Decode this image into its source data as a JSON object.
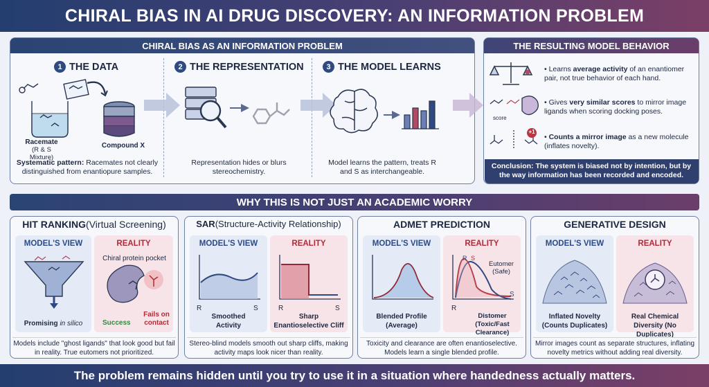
{
  "title": "CHIRAL BIAS IN AI DRUG DISCOVERY: AN INFORMATION PROBLEM",
  "top_left": {
    "header": "CHIRAL BIAS AS AN INFORMATION PROBLEM",
    "steps": [
      {
        "num": "1",
        "label": "THE DATA"
      },
      {
        "num": "2",
        "label": "THE REPRESENTATION"
      },
      {
        "num": "3",
        "label": "THE MODEL LEARNS"
      }
    ],
    "racemate_label": "Racemate",
    "racemate_sub": "(R & S Mixture)",
    "compound_label": "Compound X",
    "data_note_bold": "Systematic pattern:",
    "data_note": " Racemates not clearly distinguished from enantiopure samples.",
    "rep_note": "Representation hides or blurs stereochemistry.",
    "model_note": "Model learns the pattern, treats R and S as interchangeable."
  },
  "top_right": {
    "header": "THE RESULTING MODEL BEHAVIOR",
    "items": [
      {
        "pre": "Learns ",
        "bold": "average activity",
        "post": " of an enantiomer pair, not true behavior of each hand."
      },
      {
        "pre": "Gives ",
        "bold": "very similar scores",
        "post": " to mirror image ligands when scoring docking poses."
      },
      {
        "pre": "",
        "bold": "Counts a mirror image",
        "post": " as a new molecule (inflates novelty)."
      }
    ],
    "score_label": "score",
    "badge": "+1",
    "conclusion": "Conclusion: The system is biased not by intention, but by the way information has been recorded and encoded."
  },
  "section_title": "WHY THIS IS NOT JUST AN ACADEMIC WORRY",
  "models_view": "MODEL'S VIEW",
  "reality": "REALITY",
  "cards": {
    "hit": {
      "title_bold": "HIT RANKING",
      "title_rest": " (Virtual Screening)",
      "mv_caption_pre": "Promising ",
      "mv_caption_it": "in silico",
      "pocket_label": "Chiral protein pocket",
      "success": "Success",
      "fails": "Fails on contact",
      "note": "Models include \"ghost ligands\" that look good but fail in reality. True eutomers not prioritized."
    },
    "sar": {
      "title_bold": "SAR",
      "title_rest": " (Structure-Activity Relationship)",
      "mv_caption": "Smoothed Activity",
      "re_caption": "Sharp Enantioselective Cliff",
      "axis_r": "R",
      "axis_s": "S",
      "note": "Stereo-blind models smooth out sharp cliffs, making activity maps look nicer than reality."
    },
    "admet": {
      "title_bold": "ADMET PREDICTION",
      "mv_caption": "Blended Profile (Average)",
      "eutomer": "Eutomer (Safe)",
      "distomer": "Distomer (Toxic/Fast Clearance)",
      "axis_r": "R",
      "axis_s": "S",
      "note": "Toxicity and clearance are often enantioselective. Models learn a single blended profile."
    },
    "gen": {
      "title_bold": "GENERATIVE DESIGN",
      "mv_caption": "Inflated Novelty (Counts Duplicates)",
      "re_caption": "Real Chemical Diversity (No Duplicates)",
      "note": "Mirror images count as separate structures, inflating novelty metrics without adding real diversity."
    }
  },
  "footer": "The problem remains hidden until you try to use it in a situation where handedness actually matters.",
  "colors": {
    "navy": "#243e70",
    "plum": "#7b3f66",
    "success": "#2e8b3a",
    "fail": "#b22a38"
  }
}
